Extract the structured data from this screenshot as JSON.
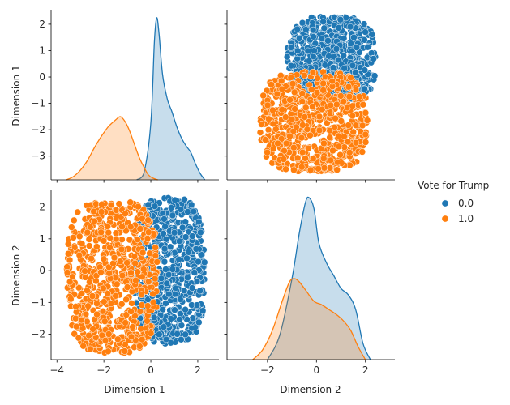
{
  "chart_data": {
    "type": "scatter",
    "kind": "pairplot",
    "variables": [
      "Dimension 1",
      "Dimension 2"
    ],
    "hue": {
      "title": "Vote for Trump",
      "levels": [
        {
          "label": "0.0",
          "color": "#1f77b4"
        },
        {
          "label": "1.0",
          "color": "#ff7f0e"
        }
      ]
    },
    "axes": {
      "dim1": {
        "label": "Dimension 1",
        "range": [
          -4.25,
          2.9
        ],
        "ticks": [
          -4,
          -2,
          0,
          2
        ]
      },
      "dim1_row": {
        "label": "Dimension 1",
        "range": [
          -3.9,
          2.55
        ],
        "ticks": [
          -3,
          -2,
          -1,
          0,
          1,
          2
        ]
      },
      "dim2": {
        "label": "Dimension 2",
        "range": [
          -3.65,
          3.2
        ],
        "ticks": [
          -2,
          0,
          2
        ]
      },
      "dim2_row": {
        "label": "Dimension 2",
        "range": [
          -2.8,
          2.55
        ],
        "ticks": [
          -2,
          -1,
          0,
          1,
          2
        ]
      }
    },
    "diag": [
      {
        "variable": "Dimension 1",
        "type": "kde",
        "series": [
          {
            "name": "0.0",
            "x": [
              -0.6,
              -0.3,
              0.0,
              0.15,
              0.25,
              0.35,
              0.5,
              0.7,
              0.9,
              1.1,
              1.3,
              1.5,
              1.7,
              1.9,
              2.1,
              2.3
            ],
            "y": [
              0.0,
              0.04,
              0.35,
              0.85,
              1.0,
              0.9,
              0.65,
              0.5,
              0.42,
              0.33,
              0.26,
              0.21,
              0.17,
              0.1,
              0.04,
              0.0
            ]
          },
          {
            "name": "1.0",
            "x": [
              -3.6,
              -3.3,
              -3.0,
              -2.7,
              -2.4,
              -2.1,
              -1.8,
              -1.5,
              -1.3,
              -1.1,
              -0.9,
              -0.7,
              -0.5,
              -0.3,
              -0.1,
              0.1,
              0.3
            ],
            "y": [
              0.0,
              0.02,
              0.06,
              0.12,
              0.2,
              0.27,
              0.33,
              0.37,
              0.39,
              0.36,
              0.3,
              0.22,
              0.14,
              0.08,
              0.03,
              0.01,
              0.0
            ]
          }
        ]
      },
      {
        "variable": "Dimension 2",
        "type": "kde",
        "series": [
          {
            "name": "0.0",
            "x": [
              -2.0,
              -1.5,
              -1.0,
              -0.7,
              -0.45,
              -0.3,
              -0.1,
              0.1,
              0.4,
              0.7,
              1.0,
              1.3,
              1.6,
              1.9,
              2.2
            ],
            "y": [
              0.0,
              0.15,
              0.5,
              0.78,
              0.97,
              1.0,
              0.93,
              0.72,
              0.6,
              0.52,
              0.44,
              0.4,
              0.31,
              0.1,
              0.0
            ]
          },
          {
            "name": "1.0",
            "x": [
              -2.6,
              -2.2,
              -1.8,
              -1.4,
              -1.1,
              -0.9,
              -0.7,
              -0.4,
              -0.1,
              0.2,
              0.5,
              0.8,
              1.1,
              1.4,
              1.7,
              2.0
            ],
            "y": [
              0.0,
              0.06,
              0.18,
              0.36,
              0.48,
              0.5,
              0.48,
              0.42,
              0.36,
              0.34,
              0.31,
              0.28,
              0.24,
              0.18,
              0.08,
              0.0
            ]
          }
        ]
      }
    ],
    "offdiag": [
      {
        "x": "Dimension 2",
        "y": "Dimension 1",
        "clusters": [
          {
            "name": "0.0",
            "x_range": [
              -1.2,
              2.4
            ],
            "y_range": [
              -1.0,
              2.3
            ],
            "count": 650
          },
          {
            "name": "1.0",
            "x_range": [
              -2.3,
              2.1
            ],
            "y_range": [
              -3.6,
              0.2
            ],
            "count": 700
          }
        ]
      },
      {
        "x": "Dimension 1",
        "y": "Dimension 2",
        "clusters": [
          {
            "name": "0.0",
            "x_range": [
              -0.7,
              2.3
            ],
            "y_range": [
              -2.3,
              2.3
            ],
            "count": 650
          },
          {
            "name": "1.0",
            "x_range": [
              -3.6,
              0.3
            ],
            "y_range": [
              -2.6,
              2.2
            ],
            "count": 700
          }
        ]
      }
    ],
    "grid": false,
    "legend_position": "right"
  }
}
